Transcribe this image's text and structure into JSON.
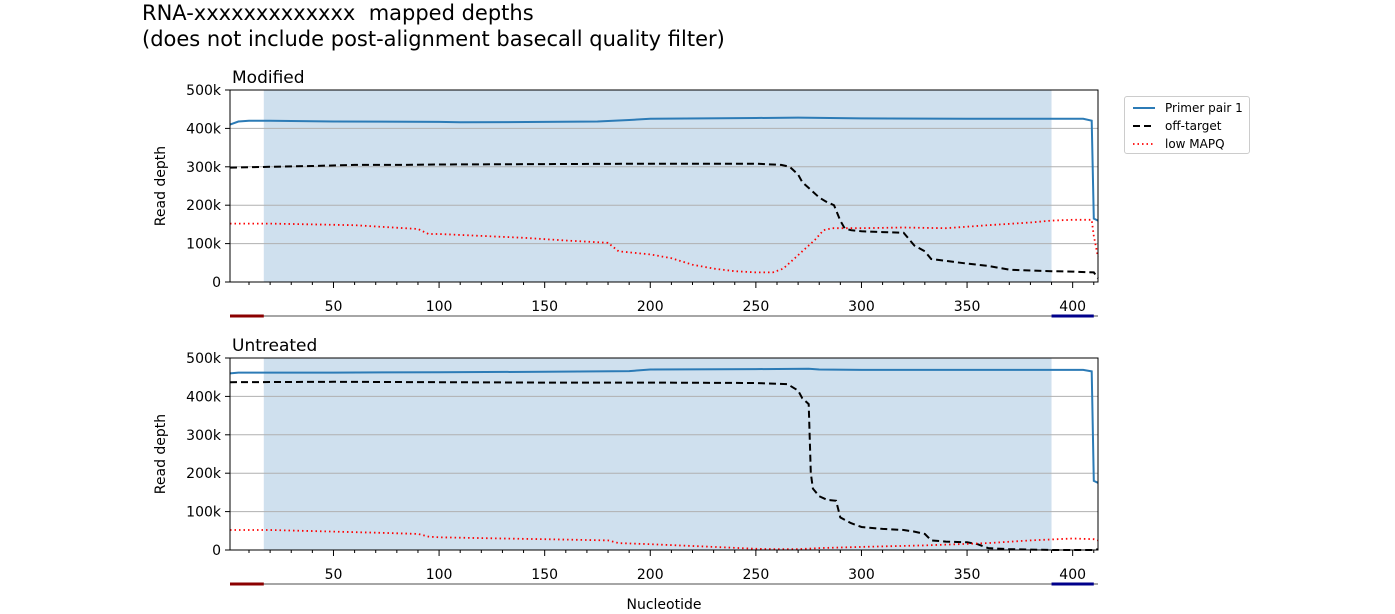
{
  "title": "RNA-xxxxxxxxxxxxx  mapped depths",
  "subtitle": "(does not include post-alignment basecall quality filter)",
  "colors": {
    "primer": "#2c7bb6",
    "offtarget": "#000000",
    "lowmapq": "#ff0000",
    "shade": "#cfe0ee",
    "left_marker": "#8b0000",
    "right_marker": "#00008b"
  },
  "legend": [
    "Primer pair 1",
    "off-target",
    "low MAPQ"
  ],
  "chart_data": [
    {
      "type": "line",
      "title": "Modified",
      "xlabel": "",
      "ylabel": "Read depth",
      "xlim": [
        1,
        412
      ],
      "ylim": [
        0,
        500000
      ],
      "xticks": [
        "50",
        "100",
        "150",
        "200",
        "250",
        "300",
        "350",
        "400"
      ],
      "yticks": [
        "0",
        "100k",
        "200k",
        "300k",
        "400k",
        "500k"
      ],
      "grid": "horizontal",
      "shaded_region": [
        17,
        390
      ],
      "primer_markers": [
        [
          1,
          17
        ],
        [
          390,
          410
        ]
      ],
      "series": [
        {
          "name": "Primer pair 1",
          "style": "solid",
          "x": [
            1,
            5,
            10,
            20,
            50,
            100,
            110,
            150,
            175,
            190,
            200,
            250,
            270,
            300,
            350,
            400,
            405,
            409,
            410,
            412
          ],
          "y": [
            410000,
            418000,
            420000,
            420000,
            418000,
            417000,
            416000,
            417000,
            418000,
            422000,
            425000,
            427000,
            428000,
            426000,
            425000,
            425000,
            425000,
            420000,
            165000,
            160000
          ]
        },
        {
          "name": "off-target",
          "style": "dashed",
          "x": [
            1,
            20,
            40,
            60,
            80,
            100,
            150,
            200,
            250,
            262,
            266,
            270,
            272,
            276,
            280,
            283,
            287,
            290,
            292,
            295,
            300,
            310,
            320,
            325,
            330,
            333,
            340,
            350,
            360,
            370,
            380,
            390,
            400,
            410,
            412
          ],
          "y": [
            298000,
            300000,
            302000,
            305000,
            305000,
            306000,
            307000,
            308000,
            308000,
            305000,
            300000,
            280000,
            260000,
            240000,
            220000,
            210000,
            200000,
            160000,
            140000,
            135000,
            132000,
            130000,
            128000,
            95000,
            80000,
            60000,
            55000,
            48000,
            42000,
            32000,
            30000,
            28000,
            27000,
            25000,
            10000
          ]
        },
        {
          "name": "low MAPQ",
          "style": "dotted",
          "x": [
            1,
            20,
            60,
            90,
            95,
            100,
            120,
            140,
            160,
            180,
            185,
            200,
            210,
            220,
            230,
            240,
            250,
            258,
            263,
            268,
            272,
            278,
            282,
            286,
            290,
            300,
            320,
            340,
            360,
            380,
            390,
            400,
            409,
            410,
            412
          ],
          "y": [
            152000,
            152000,
            148000,
            138000,
            125000,
            125000,
            120000,
            115000,
            108000,
            102000,
            80000,
            72000,
            62000,
            45000,
            35000,
            28000,
            25000,
            25000,
            35000,
            60000,
            80000,
            110000,
            135000,
            140000,
            140000,
            140000,
            142000,
            140000,
            148000,
            155000,
            160000,
            162000,
            162000,
            120000,
            65000
          ]
        }
      ]
    },
    {
      "type": "line",
      "title": "Untreated",
      "xlabel": "Nucleotide",
      "ylabel": "Read depth",
      "xlim": [
        1,
        412
      ],
      "ylim": [
        0,
        500000
      ],
      "xticks": [
        "50",
        "100",
        "150",
        "200",
        "250",
        "300",
        "350",
        "400"
      ],
      "yticks": [
        "0",
        "100k",
        "200k",
        "300k",
        "400k",
        "500k"
      ],
      "grid": "horizontal",
      "shaded_region": [
        17,
        390
      ],
      "primer_markers": [
        [
          1,
          17
        ],
        [
          390,
          410
        ]
      ],
      "series": [
        {
          "name": "Primer pair 1",
          "style": "solid",
          "x": [
            1,
            5,
            10,
            50,
            100,
            150,
            190,
            200,
            250,
            275,
            280,
            300,
            350,
            400,
            405,
            409,
            410,
            412
          ],
          "y": [
            460000,
            462000,
            462000,
            462000,
            463000,
            464000,
            466000,
            470000,
            471000,
            472000,
            470000,
            469000,
            469000,
            469000,
            469000,
            465000,
            180000,
            175000
          ]
        },
        {
          "name": "off-target",
          "style": "dashed",
          "x": [
            1,
            50,
            100,
            150,
            200,
            250,
            265,
            270,
            272,
            275,
            276,
            277,
            280,
            284,
            285,
            288,
            290,
            295,
            300,
            310,
            320,
            325,
            330,
            333,
            340,
            350,
            355,
            360,
            370,
            390,
            410,
            412
          ],
          "y": [
            437000,
            438000,
            437000,
            436000,
            436000,
            435000,
            432000,
            415000,
            395000,
            380000,
            200000,
            160000,
            140000,
            130000,
            130000,
            128000,
            85000,
            70000,
            60000,
            55000,
            52000,
            48000,
            42000,
            25000,
            22000,
            20000,
            15000,
            5000,
            2000,
            0,
            0,
            2000
          ]
        },
        {
          "name": "low MAPQ",
          "style": "dotted",
          "x": [
            1,
            20,
            50,
            70,
            90,
            95,
            100,
            130,
            150,
            180,
            185,
            200,
            230,
            250,
            260,
            270,
            280,
            300,
            330,
            360,
            380,
            400,
            410,
            412
          ],
          "y": [
            52000,
            52000,
            48000,
            45000,
            42000,
            35000,
            33000,
            30000,
            28000,
            25000,
            18000,
            15000,
            8000,
            3000,
            2000,
            2000,
            5000,
            8000,
            12000,
            18000,
            25000,
            30000,
            28000,
            25000
          ]
        }
      ]
    }
  ]
}
